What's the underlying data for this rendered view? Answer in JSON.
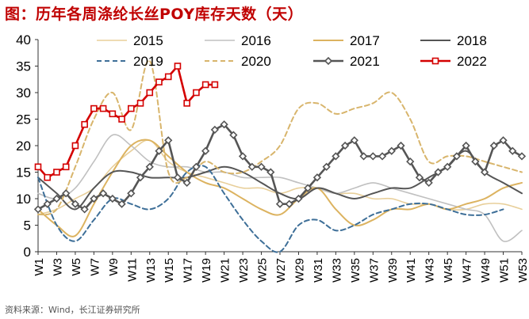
{
  "title": "图：历年各周涤纶长丝POY库存天数（天）",
  "source": "资料来源：Wind，长江证券研究所",
  "chart_data": {
    "type": "line",
    "title": "图：历年各周涤纶长丝POY库存天数（天）",
    "xlabel": "",
    "ylabel": "",
    "ylim": [
      0,
      40
    ],
    "yticks": [
      0,
      5,
      10,
      15,
      20,
      25,
      30,
      35,
      40
    ],
    "x_range": [
      1,
      53
    ],
    "xticks": [
      "W1",
      "W3",
      "W5",
      "W7",
      "W9",
      "W11",
      "W13",
      "W15",
      "W17",
      "W19",
      "W21",
      "W23",
      "W25",
      "W27",
      "W29",
      "W31",
      "W33",
      "W35",
      "W37",
      "W39",
      "W41",
      "W43",
      "W45",
      "W47",
      "W49",
      "W51",
      "W53"
    ],
    "legend_position": "top",
    "series": [
      {
        "name": "2015",
        "color": "#e8cf9a",
        "width": 1.6,
        "dash": "",
        "marker": "none",
        "x": [
          1,
          3,
          5,
          7,
          9,
          11,
          13,
          15,
          17,
          19,
          21,
          23,
          25,
          27,
          29,
          31,
          33,
          35,
          37,
          39,
          41,
          43,
          45,
          47,
          49,
          51,
          53
        ],
        "values": [
          7,
          8,
          10,
          12,
          16,
          19,
          21,
          17,
          15,
          14,
          13,
          12,
          12,
          11,
          12,
          12,
          11,
          11,
          10,
          10,
          9,
          9,
          8,
          8,
          9,
          9,
          8
        ]
      },
      {
        "name": "2016",
        "color": "#c0c0c0",
        "width": 1.6,
        "dash": "",
        "marker": "none",
        "x": [
          1,
          3,
          5,
          7,
          9,
          11,
          13,
          15,
          17,
          19,
          21,
          23,
          25,
          27,
          29,
          31,
          33,
          35,
          37,
          39,
          41,
          43,
          45,
          47,
          49,
          51,
          53
        ],
        "values": [
          11,
          10,
          12,
          17,
          22,
          20,
          17,
          16,
          16,
          15,
          15,
          14,
          14,
          14,
          13,
          12,
          11,
          12,
          13,
          12,
          11,
          10,
          9,
          8,
          7,
          2,
          4
        ]
      },
      {
        "name": "2017",
        "color": "#dcb360",
        "width": 2,
        "dash": "",
        "marker": "none",
        "x": [
          1,
          3,
          5,
          7,
          9,
          11,
          13,
          15,
          17,
          19,
          21,
          23,
          25,
          27,
          29,
          31,
          33,
          35,
          37,
          39,
          41,
          43,
          45,
          47,
          49,
          51,
          53
        ],
        "values": [
          8,
          5,
          3,
          9,
          15,
          20,
          21,
          18,
          15,
          13,
          12,
          10,
          8,
          7,
          10,
          12,
          8,
          5,
          6,
          8,
          8,
          9,
          8,
          9,
          10,
          12,
          13
        ]
      },
      {
        "name": "2018",
        "color": "#555555",
        "width": 2,
        "dash": "",
        "marker": "none",
        "x": [
          1,
          3,
          5,
          7,
          9,
          11,
          13,
          15,
          17,
          19,
          21,
          23,
          25,
          27,
          29,
          31,
          33,
          35,
          37,
          39,
          41,
          43,
          45,
          47,
          49,
          51,
          53
        ],
        "values": [
          14,
          11,
          8,
          12,
          15,
          15,
          14,
          14,
          14,
          15,
          16,
          15,
          13,
          11,
          10,
          12,
          11,
          10,
          11,
          12,
          12,
          14,
          16,
          19,
          15,
          13,
          11
        ]
      },
      {
        "name": "2019",
        "color": "#3e6f98",
        "width": 2,
        "dash": "6,4",
        "marker": "none",
        "x": [
          1,
          3,
          5,
          7,
          9,
          11,
          13,
          15,
          17,
          19,
          21,
          23,
          25,
          27,
          29,
          31,
          33,
          35,
          37,
          39,
          41,
          43,
          45,
          47,
          49,
          51
        ],
        "values": [
          14,
          5,
          2,
          6,
          10,
          9,
          8,
          10,
          15,
          16,
          11,
          6,
          2,
          0,
          5,
          6,
          4,
          5,
          7,
          8,
          9,
          9,
          8,
          7,
          7,
          8
        ]
      },
      {
        "name": "2020",
        "color": "#d8b56c",
        "width": 2,
        "dash": "6,4",
        "marker": "none",
        "x": [
          1,
          3,
          5,
          7,
          9,
          11,
          13,
          15,
          17,
          19,
          21,
          23,
          25,
          27,
          29,
          31,
          33,
          35,
          37,
          39,
          41,
          43,
          45,
          47,
          49,
          51,
          53
        ],
        "values": [
          7,
          8,
          16,
          25,
          30,
          23,
          36,
          15,
          14,
          17,
          15,
          15,
          17,
          20,
          27,
          28,
          26,
          27,
          28,
          30,
          25,
          17,
          18,
          18,
          17,
          16,
          15
        ]
      },
      {
        "name": "2021",
        "color": "#555555",
        "width": 2.6,
        "dash": "",
        "marker": "diamond",
        "x": [
          1,
          2,
          3,
          4,
          5,
          6,
          7,
          8,
          9,
          10,
          11,
          12,
          13,
          14,
          15,
          16,
          17,
          18,
          19,
          20,
          21,
          22,
          23,
          24,
          25,
          26,
          27,
          28,
          29,
          30,
          31,
          32,
          33,
          34,
          35,
          36,
          37,
          38,
          39,
          40,
          41,
          42,
          43,
          44,
          45,
          46,
          47,
          48,
          49,
          50,
          51,
          52,
          53
        ],
        "values": [
          8,
          9,
          10,
          11,
          9,
          8,
          10,
          11,
          10,
          9,
          11,
          14,
          16,
          19,
          21,
          14,
          13,
          16,
          19,
          23,
          24,
          22,
          18,
          16,
          16,
          15,
          9,
          9,
          10,
          12,
          14,
          16,
          18,
          20,
          21,
          18,
          18,
          18,
          19,
          20,
          17,
          14,
          13,
          15,
          16,
          18,
          20,
          17,
          15,
          20,
          21,
          19,
          18
        ]
      },
      {
        "name": "2022",
        "color": "#d40000",
        "width": 2.6,
        "dash": "",
        "marker": "square",
        "x": [
          1,
          2,
          3,
          4,
          5,
          6,
          7,
          8,
          9,
          10,
          11,
          12,
          13,
          14,
          15,
          16,
          17,
          18,
          19,
          20
        ],
        "values": [
          16,
          14,
          15,
          16,
          20,
          24,
          27,
          27,
          26,
          25,
          27,
          28,
          30,
          32,
          33,
          35,
          28,
          30,
          31.5,
          31.5
        ]
      }
    ]
  }
}
